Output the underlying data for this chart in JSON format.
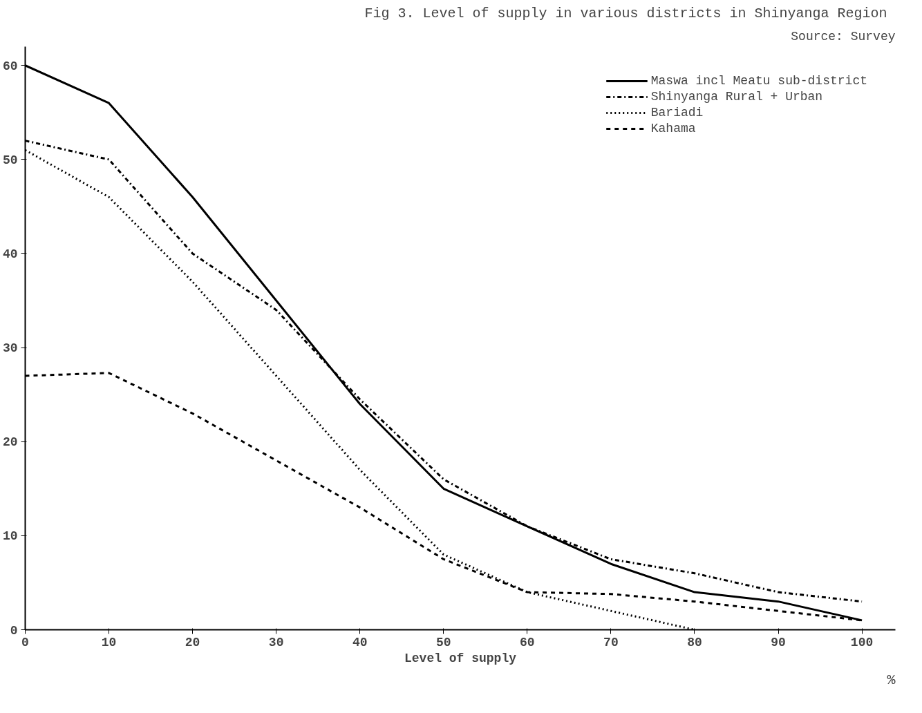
{
  "chart_data": {
    "type": "line",
    "title": "Fig 3.  Level of supply in various districts in Shinyanga Region",
    "subtitle": "Source: Survey",
    "xlabel": "Level of supply",
    "annotations": [
      "%"
    ],
    "x": [
      0,
      10,
      20,
      30,
      40,
      50,
      60,
      70,
      80,
      90,
      100
    ],
    "series": [
      {
        "name": "Maswa incl Meatu sub-district",
        "color": "#000000",
        "line_style": "solid",
        "values": [
          60,
          56,
          46,
          35,
          24,
          15,
          11,
          7,
          4,
          3,
          1
        ]
      },
      {
        "name": "Shinyanga Rural + Urban",
        "color": "#000000",
        "line_style": "dashdot",
        "values": [
          52,
          50,
          40,
          34,
          24.5,
          16,
          11,
          7.5,
          6,
          4,
          3
        ]
      },
      {
        "name": "Bariadi",
        "color": "#000000",
        "line_style": "dotted",
        "values": [
          51,
          46,
          37,
          27,
          17,
          8,
          4,
          2,
          0,
          null,
          null
        ]
      },
      {
        "name": "Kahama",
        "color": "#000000",
        "line_style": "dashed",
        "values": [
          27,
          27.3,
          23,
          18,
          13,
          7.5,
          4,
          3.8,
          3,
          2,
          1
        ]
      }
    ],
    "xlim": [
      0,
      104
    ],
    "ylim": [
      0,
      62
    ],
    "xticks": [
      0,
      10,
      20,
      30,
      40,
      50,
      60,
      70,
      80,
      90,
      100
    ],
    "yticks": [
      0,
      10,
      20,
      30,
      40,
      50,
      60
    ],
    "grid": false,
    "legend": "top right",
    "marker": "none"
  }
}
